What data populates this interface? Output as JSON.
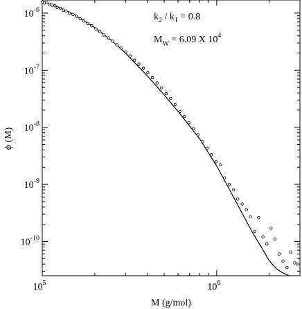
{
  "chart_data": {
    "type": "scatter",
    "xlabel": "M (g/mol)",
    "ylabel": "ϕ (M)",
    "x_scale": "log",
    "y_scale": "log",
    "xlim": [
      100000,
      3000000
    ],
    "ylim": [
      2.5e-11,
      1.7e-06
    ],
    "grid": false,
    "x_ticks": [
      {
        "value": 100000,
        "base": "10",
        "exp": "5"
      },
      {
        "value": 1000000,
        "base": "10",
        "exp": "6"
      }
    ],
    "y_ticks": [
      {
        "value": 1e-06,
        "base": "10",
        "exp": "-6"
      },
      {
        "value": 1e-07,
        "base": "10",
        "exp": "-7"
      },
      {
        "value": 1e-08,
        "base": "10",
        "exp": "-8"
      },
      {
        "value": 1e-09,
        "base": "10",
        "exp": "-9"
      },
      {
        "value": 1e-10,
        "base": "10",
        "exp": "-10"
      }
    ],
    "annotations": {
      "ratio": {
        "k2": "k",
        "k2_sub": "2",
        "sep": " / ",
        "k1": "k",
        "k1_sub": "1",
        "value": " = 0.8"
      },
      "mw": {
        "m": "M",
        "sub": "W",
        "value": " = 6.09 X 10",
        "exp": "4"
      }
    },
    "series": [
      {
        "style": "line",
        "x": [
          100000,
          120000,
          150000,
          200000,
          250000,
          300000,
          400000,
          500000,
          600000,
          700000,
          800000,
          1000000,
          1200000,
          1400000,
          1600000,
          1800000,
          2000000,
          2200000,
          2400000,
          2600000
        ],
        "y": [
          1.6e-06,
          1.33e-06,
          9.7e-07,
          5.6e-07,
          3.3e-07,
          2e-07,
          8e-08,
          3.7e-08,
          1.9e-08,
          1.05e-08,
          6.2e-09,
          2.1e-09,
          7.5e-10,
          3.1e-10,
          1.45e-10,
          8e-11,
          4.6e-11,
          3.3e-11,
          2.8e-11,
          2.5e-11
        ]
      },
      {
        "style": "points",
        "x": [
          100000,
          103000,
          106000,
          110000,
          114000,
          118000,
          122000,
          127000,
          132000,
          137000,
          143000,
          150000,
          157000,
          165000,
          173000,
          182000,
          192000,
          203000,
          214000,
          226000,
          239000,
          253000,
          268000,
          284000,
          301000,
          319000,
          338000,
          358000,
          380000,
          403000,
          428000,
          455000,
          483000,
          513000,
          545000,
          579000,
          615000,
          653000,
          693000,
          736000,
          781000,
          829000,
          880000,
          934000,
          991000,
          1050000,
          1110000,
          1180000,
          1250000,
          1320000,
          1400000,
          1480000,
          1560000,
          1650000,
          1740000,
          1840000,
          1940000,
          2050000,
          2160000,
          2280000,
          2400000,
          2530000,
          2660000,
          2800000,
          2900000
        ],
        "y": [
          1.58e-06,
          1.5e-06,
          1.55e-06,
          1.42e-06,
          1.38e-06,
          1.35e-06,
          1.25e-06,
          1.22e-06,
          1.12e-06,
          1.08e-06,
          1e-06,
          9.5e-07,
          8.8e-07,
          8e-07,
          7.3e-07,
          6.6e-07,
          6e-07,
          5.3e-07,
          4.7e-07,
          4.15e-07,
          3.7e-07,
          3.25e-07,
          2.8e-07,
          2.45e-07,
          2.1e-07,
          1.78e-07,
          1.5e-07,
          1.28e-07,
          1.08e-07,
          9e-08,
          7.4e-08,
          6e-08,
          4.9e-08,
          3.9e-08,
          3.2e-08,
          2.5e-08,
          1.9e-08,
          1.55e-08,
          1.2e-08,
          9.5e-09,
          7.4e-09,
          5.6e-09,
          4.3e-09,
          3.3e-09,
          2.5e-09,
          2.2e-09,
          1.3e-09,
          1e-09,
          8e-10,
          5.5e-10,
          4.5e-10,
          3.6e-10,
          2.7e-10,
          1.5e-10,
          2.6e-10,
          1.2e-10,
          9e-11,
          1.7e-10,
          1.1e-10,
          6e-11,
          4.5e-11,
          3.5e-11,
          6.5e-11,
          4.2e-11,
          4e-11
        ]
      }
    ]
  }
}
